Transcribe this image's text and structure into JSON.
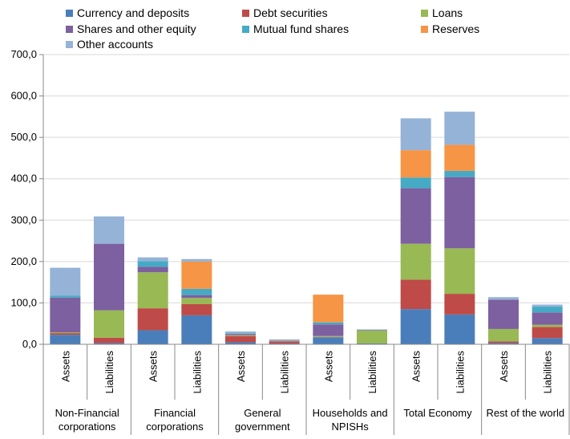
{
  "chart_data": {
    "type": "bar",
    "stacked": true,
    "categories": [
      {
        "label": "Assets",
        "group": "Non-Financial corporations"
      },
      {
        "label": "Liabilities",
        "group": "Non-Financial corporations"
      },
      {
        "label": "Assets",
        "group": "Financial corporations"
      },
      {
        "label": "Liabilities",
        "group": "Financial corporations"
      },
      {
        "label": "Assets",
        "group": "General government"
      },
      {
        "label": "Liabilities",
        "group": "General government"
      },
      {
        "label": "Assets",
        "group": "Households and NPISHs"
      },
      {
        "label": "Liabilities",
        "group": "Households and NPISHs"
      },
      {
        "label": "Assets",
        "group": "Total Economy"
      },
      {
        "label": "Liabilities",
        "group": "Total Economy"
      },
      {
        "label": "Assets",
        "group": "Rest of the world"
      },
      {
        "label": "Liabilities",
        "group": "Rest of the world"
      }
    ],
    "groups": [
      {
        "name": "Non-Financial corporations",
        "lines": [
          "Non-Financial",
          "corporations"
        ]
      },
      {
        "name": "Financial corporations",
        "lines": [
          "Financial",
          "corporations"
        ]
      },
      {
        "name": "General government",
        "lines": [
          "General",
          "government"
        ]
      },
      {
        "name": "Households and NPISHs",
        "lines": [
          "Households and",
          "NPISHs"
        ]
      },
      {
        "name": "Total Economy",
        "lines": [
          "Total Economy"
        ]
      },
      {
        "name": "Rest of the world",
        "lines": [
          "Rest of the world"
        ]
      }
    ],
    "series": [
      {
        "name": "Currency and deposits",
        "color": "#4a7ebb",
        "values": [
          23,
          3,
          34,
          70,
          5,
          2,
          17,
          2,
          85,
          72,
          3,
          15
        ]
      },
      {
        "name": "Debt securities",
        "color": "#be4b48",
        "values": [
          4,
          13,
          53,
          27,
          15,
          5,
          1,
          0,
          71,
          50,
          4,
          27
        ]
      },
      {
        "name": "Loans",
        "color": "#98b954",
        "values": [
          2,
          66,
          87,
          15,
          2,
          1,
          2,
          31,
          87,
          110,
          30,
          5
        ]
      },
      {
        "name": "Shares and other equity",
        "color": "#7d60a0",
        "values": [
          84,
          161,
          13,
          7,
          3,
          1,
          28,
          1,
          134,
          172,
          71,
          30
        ]
      },
      {
        "name": "Mutual fund shares",
        "color": "#46aac5",
        "values": [
          5,
          0,
          14,
          15,
          1,
          0,
          5,
          0,
          26,
          15,
          0,
          14
        ]
      },
      {
        "name": "Reserves",
        "color": "#f69545",
        "values": [
          0,
          0,
          0,
          66,
          0,
          0,
          67,
          0,
          66,
          63,
          0,
          0
        ]
      },
      {
        "name": "Other accounts",
        "color": "#95b3d7",
        "values": [
          67,
          66,
          9,
          6,
          5,
          3,
          0,
          2,
          77,
          80,
          6,
          5
        ]
      }
    ],
    "yaxis": {
      "min": 0,
      "max": 700,
      "step": 100,
      "tick_labels": [
        "0,0",
        "100,0",
        "200,0",
        "300,0",
        "400,0",
        "500,0",
        "600,0",
        "700,0"
      ]
    },
    "grid": "horizontal",
    "legend_position": "top",
    "title": "",
    "xlabel": "",
    "ylabel": ""
  }
}
